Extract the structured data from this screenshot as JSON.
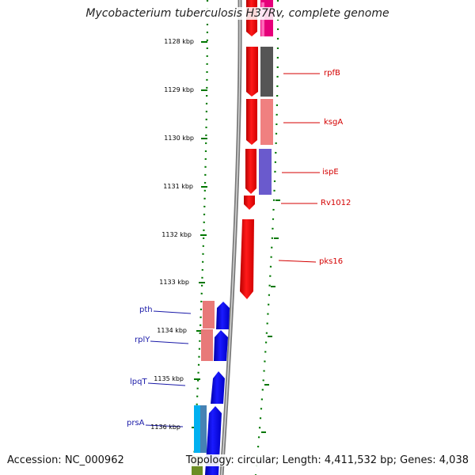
{
  "title": "Mycobacterium tuberculosis H37Rv, complete genome",
  "footer": {
    "accession": "Accession: NC_000962",
    "summary": "Topology: circular; Length: 4,411,532 bp; Genes: 4,038"
  },
  "ruler": [
    {
      "label": "1128 kbp"
    },
    {
      "label": "1129 kbp"
    },
    {
      "label": "1130 kbp"
    },
    {
      "label": "1131 kbp"
    },
    {
      "label": "1132 kbp"
    },
    {
      "label": "1133 kbp"
    },
    {
      "label": "1134 kbp"
    },
    {
      "label": "1135 kbp"
    },
    {
      "label": "1136 kbp"
    }
  ],
  "genes_forward": [
    {
      "label": "rpfB"
    },
    {
      "label": "ksgA"
    },
    {
      "label": "ispE"
    },
    {
      "label": "Rv1012"
    },
    {
      "label": "pks16"
    }
  ],
  "genes_reverse": [
    {
      "label": "pth"
    },
    {
      "label": "rplY"
    },
    {
      "label": "lpqT"
    },
    {
      "label": "prsA"
    }
  ],
  "colors": {
    "backbone": "#8c8c8c",
    "forward_cds": "#ff0000",
    "reverse_cds": "#0000ff",
    "label_forward": "#d40000",
    "label_reverse": "#1a1aa8",
    "gc_dots": "#007700"
  }
}
